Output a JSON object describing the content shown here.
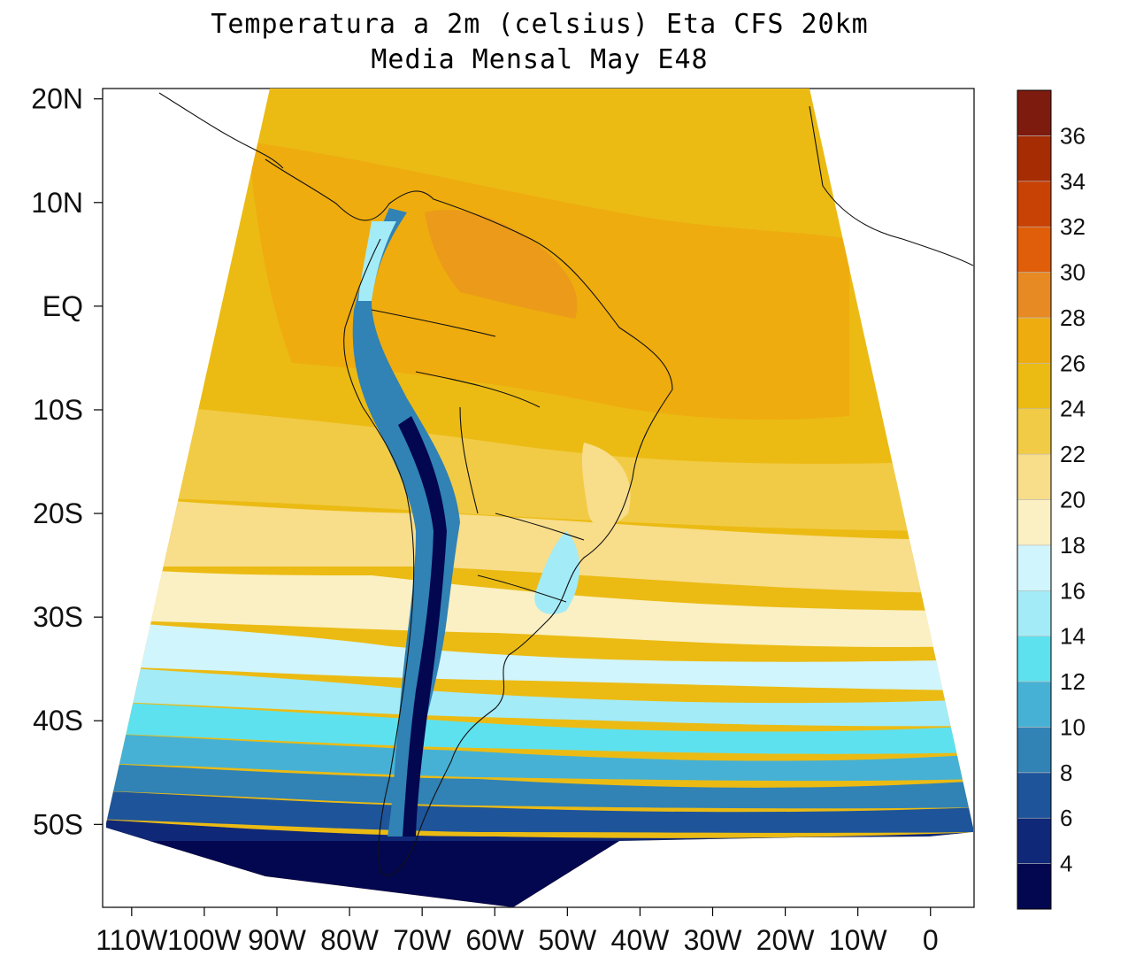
{
  "title": {
    "line1": "Temperatura a 2m (celsius) Eta CFS 20km",
    "line2": "Media Mensal May  E48"
  },
  "axes": {
    "lat_labels": [
      "20N",
      "10N",
      "EQ",
      "10S",
      "20S",
      "30S",
      "40S",
      "50S"
    ],
    "lat_values": [
      20,
      10,
      0,
      -10,
      -20,
      -30,
      -40,
      -50
    ],
    "lon_labels": [
      "110W",
      "100W",
      "90W",
      "80W",
      "70W",
      "60W",
      "50W",
      "40W",
      "30W",
      "20W",
      "10W",
      "0"
    ],
    "lon_values": [
      -110,
      -100,
      -90,
      -80,
      -70,
      -60,
      -50,
      -40,
      -30,
      -20,
      -10,
      0
    ],
    "lat_range": [
      -58,
      21
    ],
    "lon_range": [
      -114,
      6
    ]
  },
  "colorbar": {
    "labels": [
      "4",
      "6",
      "8",
      "10",
      "12",
      "14",
      "16",
      "18",
      "20",
      "22",
      "24",
      "26",
      "28",
      "30",
      "32",
      "34",
      "36"
    ],
    "colors": [
      "#03074f",
      "#0f2878",
      "#1e549a",
      "#3182b5",
      "#46b1d4",
      "#5ee1ee",
      "#a3ebf7",
      "#d1f5fc",
      "#fbf0c3",
      "#f8dd8a",
      "#f2cb46",
      "#ebbb14",
      "#efac0e",
      "#e78a24",
      "#e05e0a",
      "#c84105",
      "#a62c03",
      "#7d1b0e"
    ]
  },
  "chart_data": {
    "type": "filled-contour map",
    "variable": "Temperatura a 2m (celsius)",
    "model": "Eta CFS 20km",
    "period": "Media Mensal May",
    "member": "E48",
    "contour_levels_celsius": [
      4,
      6,
      8,
      10,
      12,
      14,
      16,
      18,
      20,
      22,
      24,
      26,
      28,
      30,
      32,
      34,
      36
    ],
    "approx_zonal_temperature_ocean": [
      {
        "lat": 15,
        "value": 26
      },
      {
        "lat": 5,
        "value": 27
      },
      {
        "lat": -5,
        "value": 26
      },
      {
        "lat": -15,
        "value": 24
      },
      {
        "lat": -22,
        "value": 21
      },
      {
        "lat": -30,
        "value": 19
      },
      {
        "lat": -34,
        "value": 16
      },
      {
        "lat": -38,
        "value": 13
      },
      {
        "lat": -42,
        "value": 10
      },
      {
        "lat": -46,
        "value": 8
      },
      {
        "lat": -50,
        "value": 5
      },
      {
        "lat": -55,
        "value": 3
      }
    ],
    "notes": "Andes cordillera coldest (<4 C); Amazon basin and northern South America 26-30 C."
  }
}
